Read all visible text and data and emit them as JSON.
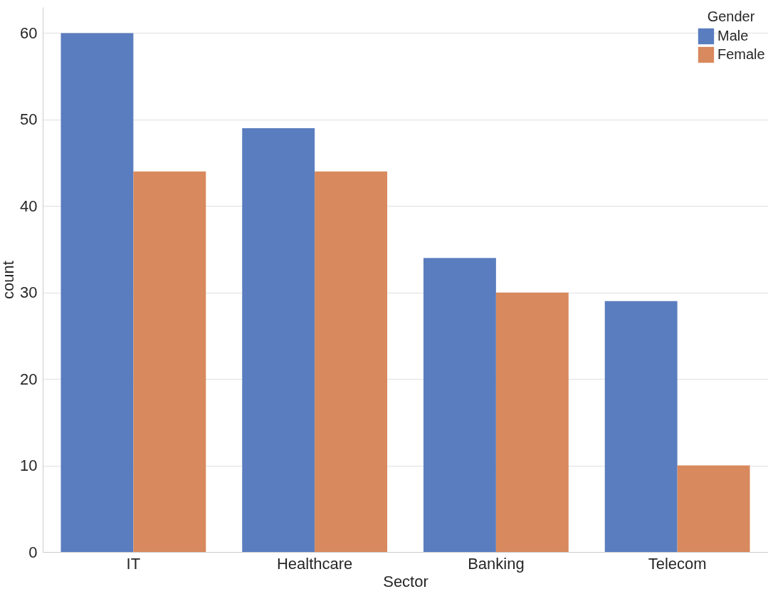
{
  "chart_data": {
    "type": "bar",
    "xlabel": "Sector",
    "ylabel": "count",
    "legend_title": "Gender",
    "categories": [
      "IT",
      "Healthcare",
      "Banking",
      "Telecom"
    ],
    "series": [
      {
        "name": "Male",
        "color": "#5a7dbf",
        "values": [
          60,
          49,
          34,
          29
        ]
      },
      {
        "name": "Female",
        "color": "#d8895d",
        "values": [
          44,
          44,
          30,
          10
        ]
      }
    ],
    "ylim": [
      0,
      63
    ],
    "yticks": [
      0,
      10,
      20,
      30,
      40,
      50,
      60
    ],
    "grid": "y",
    "legend": "top right"
  }
}
